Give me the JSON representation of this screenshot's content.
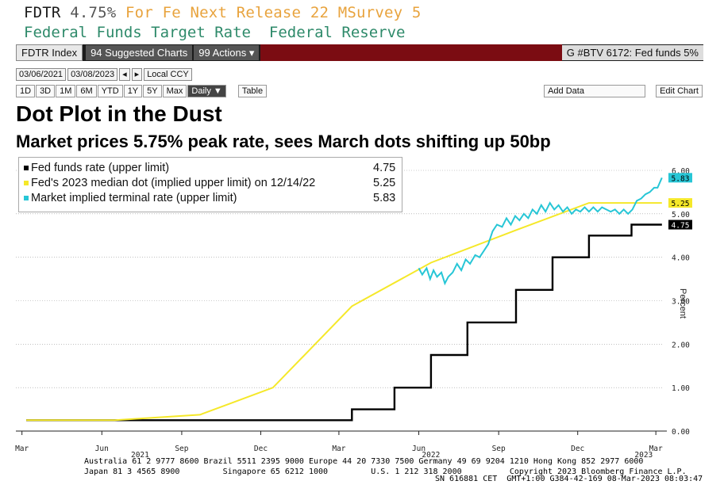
{
  "header": {
    "ticker": "FDTR",
    "value": "4.75%",
    "for_label": "For Fe",
    "next_release": "Next Release 22 M",
    "survey": "Survey 5",
    "description": "Federal Funds Target Rate",
    "source": "Federal Reserve"
  },
  "toolbar": {
    "index_label": "FDTR Index",
    "suggested": "94 Suggested Charts",
    "actions": "99 Actions ▾",
    "chart_ref": "G #BTV 6172: Fed funds 5%",
    "start_date": "03/06/2021",
    "end_date": "03/08/2023",
    "currency": "Local CCY",
    "ranges": [
      "1D",
      "3D",
      "1M",
      "6M",
      "YTD",
      "1Y",
      "5Y",
      "Max"
    ],
    "frequency": "Daily ▼",
    "table": "Table",
    "add_data": "Add Data",
    "edit_chart": "Edit Chart"
  },
  "footer": {
    "line1": "Australia 61 2 9777 8600 Brazil 5511 2395 9000 Europe 44 20 7330 7500 Germany 49 69 9204 1210 Hong Kong 852 2977 6000",
    "line2": "Japan 81 3 4565 8900         Singapore 65 6212 1000         U.S. 1 212 318 2000          Copyright 2023 Bloomberg Finance L.P.",
    "line3": "SN 616881 CET  GMT+1:00 G384-42-169 08-Mar-2023 08:03:47"
  },
  "chart_data": {
    "type": "line",
    "title": "Dot Plot in the Dust",
    "subtitle": "Market prices 5.75% peak rate, sees March dots shifting up 50bp",
    "ylabel": "Percent",
    "ylim": [
      0,
      6
    ],
    "xlim": [
      "2021-02-22",
      "2023-03-10"
    ],
    "yticks": [
      "0.00",
      "1.00",
      "2.00",
      "3.00",
      "4.00",
      "5.00",
      "6.00"
    ],
    "xticks": [
      {
        "label": "Mar",
        "date": "2021-03-01"
      },
      {
        "label": "Jun",
        "date": "2021-06-01"
      },
      {
        "label": "Sep",
        "date": "2021-09-01"
      },
      {
        "label": "Dec",
        "date": "2021-12-01"
      },
      {
        "label": "Mar",
        "date": "2022-03-01"
      },
      {
        "label": "Jun",
        "date": "2022-06-01"
      },
      {
        "label": "Sep",
        "date": "2022-09-01"
      },
      {
        "label": "Dec",
        "date": "2022-12-01"
      },
      {
        "label": "Mar",
        "date": "2023-03-01"
      }
    ],
    "year_labels": [
      {
        "label": "2021",
        "date": "2021-07-15"
      },
      {
        "label": "2022",
        "date": "2022-06-15"
      },
      {
        "label": "2023",
        "date": "2023-02-15"
      }
    ],
    "grid": "horizontal",
    "legend_position": "top-left",
    "series": [
      {
        "name": "Fed funds rate (upper limit)",
        "last": "4.75",
        "color": "#000000",
        "style": "step",
        "points": [
          [
            "2021-03-06",
            0.25
          ],
          [
            "2022-03-16",
            0.5
          ],
          [
            "2022-05-04",
            1.0
          ],
          [
            "2022-06-15",
            1.75
          ],
          [
            "2022-07-27",
            2.5
          ],
          [
            "2022-09-21",
            3.25
          ],
          [
            "2022-11-02",
            4.0
          ],
          [
            "2022-12-14",
            4.5
          ],
          [
            "2023-02-01",
            4.75
          ],
          [
            "2023-03-08",
            4.75
          ]
        ]
      },
      {
        "name": "Fed's 2023 median dot (implied upper limit) on 12/14/22",
        "last": "5.25",
        "color": "#f5e829",
        "style": "line",
        "points": [
          [
            "2021-03-06",
            0.25
          ],
          [
            "2021-06-16",
            0.25
          ],
          [
            "2021-09-22",
            0.375
          ],
          [
            "2021-12-15",
            1.0
          ],
          [
            "2022-03-16",
            2.875
          ],
          [
            "2022-06-15",
            3.875
          ],
          [
            "2022-09-21",
            4.625
          ],
          [
            "2022-12-14",
            5.25
          ],
          [
            "2023-03-08",
            5.25
          ]
        ]
      },
      {
        "name": "Market implied terminal rate (upper limit)",
        "last": "5.83",
        "color": "#27c6d6",
        "style": "line",
        "points": [
          [
            "2022-06-01",
            3.75
          ],
          [
            "2022-06-05",
            3.6
          ],
          [
            "2022-06-10",
            3.75
          ],
          [
            "2022-06-14",
            3.5
          ],
          [
            "2022-06-18",
            3.7
          ],
          [
            "2022-06-22",
            3.55
          ],
          [
            "2022-06-27",
            3.65
          ],
          [
            "2022-07-01",
            3.4
          ],
          [
            "2022-07-05",
            3.55
          ],
          [
            "2022-07-10",
            3.65
          ],
          [
            "2022-07-15",
            3.85
          ],
          [
            "2022-07-20",
            3.7
          ],
          [
            "2022-07-25",
            3.95
          ],
          [
            "2022-07-30",
            3.85
          ],
          [
            "2022-08-05",
            4.05
          ],
          [
            "2022-08-10",
            4.0
          ],
          [
            "2022-08-15",
            4.15
          ],
          [
            "2022-08-20",
            4.3
          ],
          [
            "2022-08-25",
            4.6
          ],
          [
            "2022-08-30",
            4.75
          ],
          [
            "2022-09-05",
            4.7
          ],
          [
            "2022-09-10",
            4.9
          ],
          [
            "2022-09-15",
            4.75
          ],
          [
            "2022-09-20",
            4.95
          ],
          [
            "2022-09-25",
            4.85
          ],
          [
            "2022-09-30",
            5.0
          ],
          [
            "2022-10-05",
            4.9
          ],
          [
            "2022-10-10",
            5.1
          ],
          [
            "2022-10-15",
            5.0
          ],
          [
            "2022-10-20",
            5.2
          ],
          [
            "2022-10-25",
            5.05
          ],
          [
            "2022-10-30",
            5.25
          ],
          [
            "2022-11-04",
            5.1
          ],
          [
            "2022-11-09",
            5.2
          ],
          [
            "2022-11-14",
            5.05
          ],
          [
            "2022-11-19",
            5.15
          ],
          [
            "2022-11-24",
            5.0
          ],
          [
            "2022-11-29",
            5.1
          ],
          [
            "2022-12-04",
            5.05
          ],
          [
            "2022-12-09",
            5.15
          ],
          [
            "2022-12-14",
            5.05
          ],
          [
            "2022-12-19",
            5.15
          ],
          [
            "2022-12-24",
            5.05
          ],
          [
            "2022-12-29",
            5.15
          ],
          [
            "2023-01-03",
            5.1
          ],
          [
            "2023-01-08",
            5.05
          ],
          [
            "2023-01-13",
            5.1
          ],
          [
            "2023-01-18",
            5.0
          ],
          [
            "2023-01-23",
            5.1
          ],
          [
            "2023-01-28",
            5.0
          ],
          [
            "2023-02-02",
            5.1
          ],
          [
            "2023-02-07",
            5.3
          ],
          [
            "2023-02-12",
            5.35
          ],
          [
            "2023-02-17",
            5.45
          ],
          [
            "2023-02-22",
            5.5
          ],
          [
            "2023-02-27",
            5.6
          ],
          [
            "2023-03-03",
            5.6
          ],
          [
            "2023-03-08",
            5.83
          ]
        ]
      }
    ]
  }
}
